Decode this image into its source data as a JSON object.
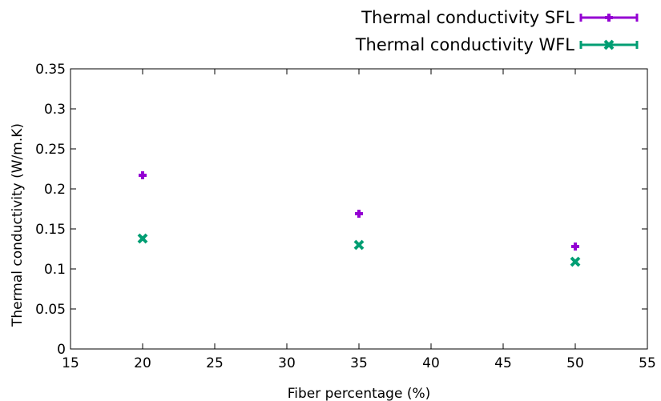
{
  "chart_data": {
    "type": "scatter",
    "title": "",
    "xlabel": "Fiber percentage (%)",
    "ylabel": "Thermal conductivity (W/m.K)",
    "xlim": [
      15,
      55
    ],
    "ylim": [
      0,
      0.35
    ],
    "xticks": [
      15,
      20,
      25,
      30,
      35,
      40,
      45,
      50,
      55
    ],
    "yticks": [
      0,
      0.05,
      0.1,
      0.15,
      0.2,
      0.25,
      0.3,
      0.35
    ],
    "grid": false,
    "legend_position": "top-right",
    "series": [
      {
        "name": "Thermal conductivity SFL",
        "marker": "plus",
        "color": "#9400D3",
        "points": [
          {
            "x": 20,
            "y": 0.217
          },
          {
            "x": 35,
            "y": 0.169
          },
          {
            "x": 50,
            "y": 0.128
          }
        ]
      },
      {
        "name": "Thermal conductivity WFL",
        "marker": "cross",
        "color": "#009E73",
        "points": [
          {
            "x": 20,
            "y": 0.138
          },
          {
            "x": 35,
            "y": 0.13
          },
          {
            "x": 50,
            "y": 0.109
          }
        ]
      }
    ]
  }
}
